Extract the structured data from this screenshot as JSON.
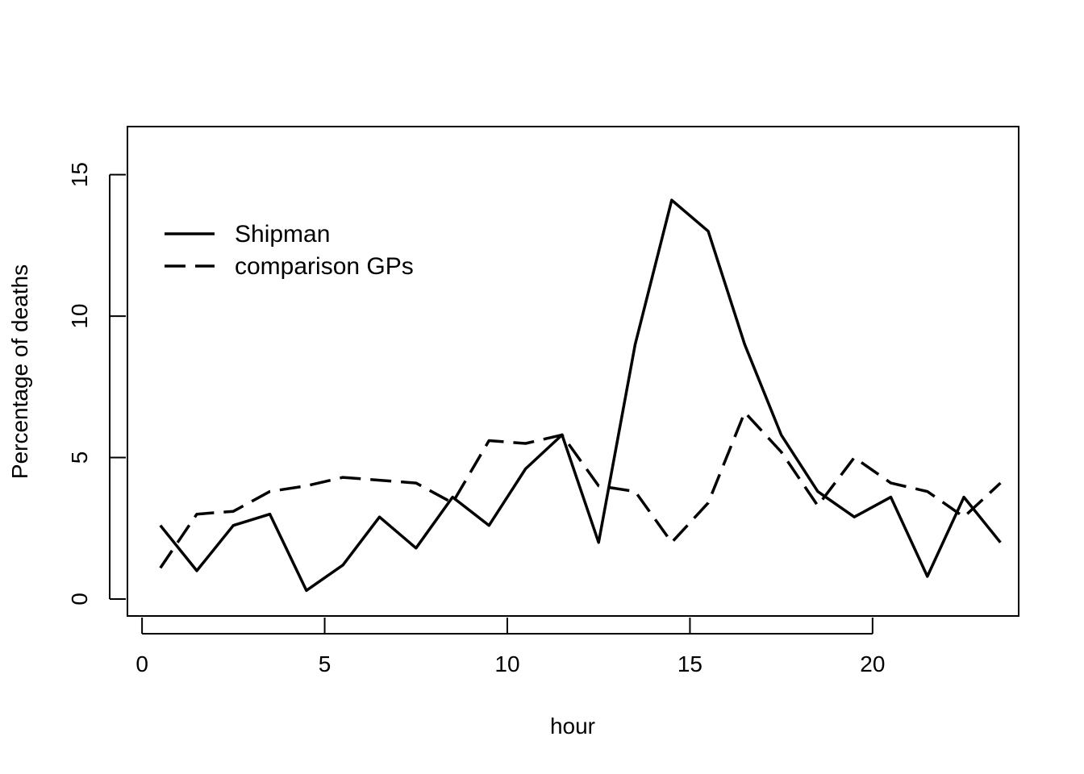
{
  "chart_data": {
    "type": "line",
    "title": "",
    "xlabel": "hour",
    "ylabel": "Percentage of deaths",
    "xlim": [
      -0.4,
      24.0
    ],
    "ylim": [
      -0.6,
      16.7
    ],
    "x_ticks": [
      0,
      5,
      10,
      15,
      20
    ],
    "y_ticks": [
      0,
      5,
      10,
      15
    ],
    "grid": false,
    "legend_position": "top-left",
    "x": [
      0.5,
      1.5,
      2.5,
      3.5,
      4.5,
      5.5,
      6.5,
      7.5,
      8.5,
      9.5,
      10.5,
      11.5,
      12.5,
      13.5,
      14.5,
      15.5,
      16.5,
      17.5,
      18.5,
      19.5,
      20.5,
      21.5,
      22.5,
      23.5
    ],
    "series": [
      {
        "name": "Shipman",
        "line_style": "solid",
        "color": "#000000",
        "values": [
          2.6,
          1.0,
          2.6,
          3.0,
          0.3,
          1.2,
          2.9,
          1.8,
          3.6,
          2.6,
          4.6,
          5.8,
          2.0,
          9.0,
          14.1,
          13.0,
          9.0,
          5.8,
          3.8,
          2.9,
          3.6,
          0.8,
          3.6,
          2.0
        ]
      },
      {
        "name": "comparison GPs",
        "line_style": "dashed",
        "color": "#000000",
        "values": [
          1.1,
          3.0,
          3.1,
          3.8,
          4.0,
          4.3,
          4.2,
          4.1,
          3.4,
          5.6,
          5.5,
          5.8,
          4.0,
          3.8,
          2.0,
          3.4,
          6.6,
          5.2,
          3.3,
          5.0,
          4.1,
          3.8,
          2.9,
          4.1
        ]
      }
    ]
  }
}
